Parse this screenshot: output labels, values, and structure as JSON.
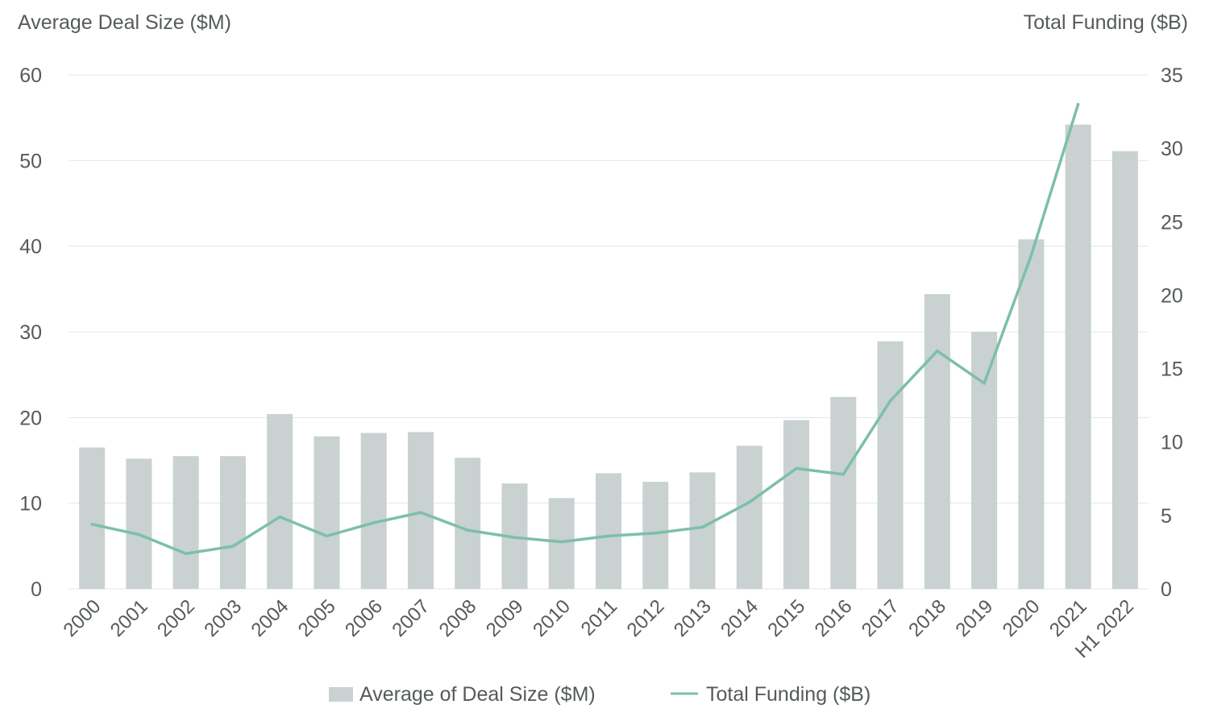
{
  "chart_data": {
    "type": "bar",
    "left_axis_title": "Average Deal Size ($M)",
    "right_axis_title": "Total Funding ($B)",
    "categories": [
      "2000",
      "2001",
      "2002",
      "2003",
      "2004",
      "2005",
      "2006",
      "2007",
      "2008",
      "2009",
      "2010",
      "2011",
      "2012",
      "2013",
      "2014",
      "2015",
      "2016",
      "2017",
      "2018",
      "2019",
      "2020",
      "2021",
      "H1 2022"
    ],
    "series": [
      {
        "name": "Average of Deal Size ($M)",
        "type": "bar",
        "axis": "left",
        "color": "#c9d1d1",
        "values": [
          16.5,
          15.2,
          15.5,
          15.5,
          20.4,
          17.8,
          18.2,
          18.3,
          15.3,
          12.3,
          10.6,
          13.5,
          12.5,
          13.6,
          16.7,
          19.7,
          22.4,
          28.9,
          34.4,
          30.0,
          40.8,
          54.2,
          51.1
        ]
      },
      {
        "name": "Total Funding ($B)",
        "type": "line",
        "axis": "right",
        "color": "#7dbfaa",
        "values": [
          4.4,
          3.7,
          2.4,
          2.9,
          4.9,
          3.6,
          4.5,
          5.2,
          4.0,
          3.5,
          3.2,
          3.6,
          3.8,
          4.2,
          5.9,
          8.2,
          7.8,
          12.8,
          16.2,
          14.0,
          22.7,
          33.0,
          null
        ]
      }
    ],
    "left_axis": {
      "min": 0,
      "max": 60,
      "ticks": [
        0,
        10,
        20,
        30,
        40,
        50,
        60
      ]
    },
    "right_axis": {
      "min": 0,
      "max": 35,
      "ticks": [
        0,
        5,
        10,
        15,
        20,
        25,
        30,
        35
      ]
    },
    "grid": true,
    "legend_position": "bottom"
  }
}
